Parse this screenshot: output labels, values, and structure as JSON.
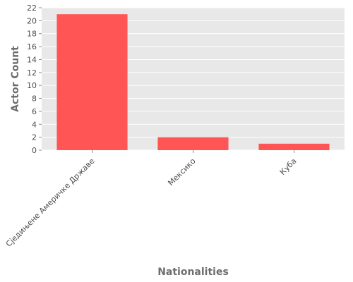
{
  "chart_data": {
    "type": "bar",
    "categories": [
      "Сједињене Америчке Државе",
      "Мексико",
      "Куба"
    ],
    "values": [
      21,
      2,
      1
    ],
    "xlabel": "Nationalities",
    "ylabel": "Actor Count",
    "ylim": [
      0,
      22
    ],
    "yticks": [
      0,
      2,
      4,
      6,
      8,
      10,
      12,
      14,
      16,
      18,
      20,
      22
    ],
    "grid": true,
    "colors": {
      "bar": "#ff5555",
      "panel": "#e8e8e8",
      "grid": "#ffffff",
      "text": "#4d4d4d"
    }
  }
}
